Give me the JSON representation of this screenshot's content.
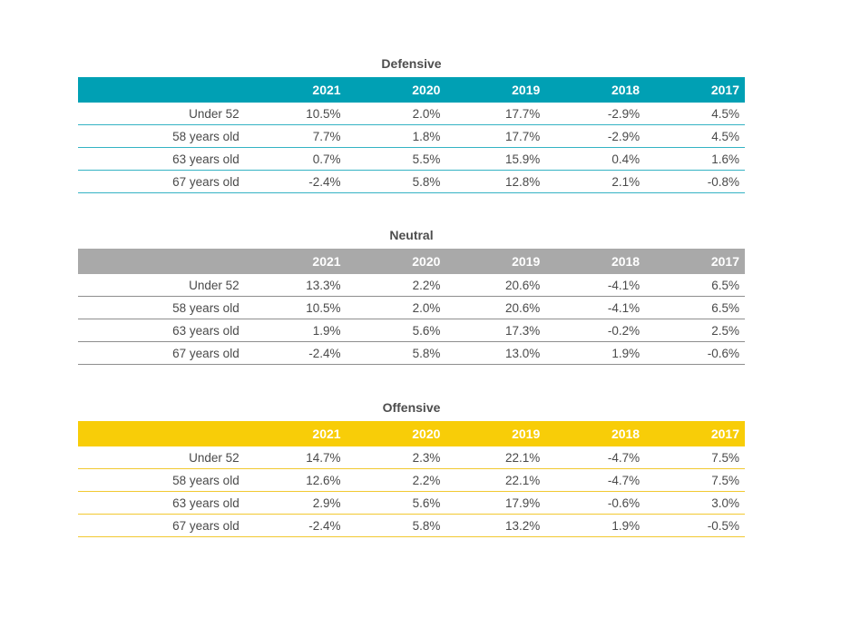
{
  "years": [
    "2021",
    "2020",
    "2019",
    "2018",
    "2017"
  ],
  "tables": [
    {
      "title": "Defensive",
      "theme": "teal",
      "header_color": "#00a0b4",
      "rows": [
        {
          "label": "Under 52",
          "values": [
            "10.5%",
            "2.0%",
            "17.7%",
            "-2.9%",
            "4.5%"
          ]
        },
        {
          "label": "58 years old",
          "values": [
            "7.7%",
            "1.8%",
            "17.7%",
            "-2.9%",
            "4.5%"
          ]
        },
        {
          "label": "63 years old",
          "values": [
            "0.7%",
            "5.5%",
            "15.9%",
            "0.4%",
            "1.6%"
          ]
        },
        {
          "label": "67 years old",
          "values": [
            "-2.4%",
            "5.8%",
            "12.8%",
            "2.1%",
            "-0.8%"
          ]
        }
      ]
    },
    {
      "title": "Neutral",
      "theme": "gray",
      "header_color": "#a9a9a9",
      "rows": [
        {
          "label": "Under 52",
          "values": [
            "13.3%",
            "2.2%",
            "20.6%",
            "-4.1%",
            "6.5%"
          ]
        },
        {
          "label": "58 years old",
          "values": [
            "10.5%",
            "2.0%",
            "20.6%",
            "-4.1%",
            "6.5%"
          ]
        },
        {
          "label": "63 years old",
          "values": [
            "1.9%",
            "5.6%",
            "17.3%",
            "-0.2%",
            "2.5%"
          ]
        },
        {
          "label": "67 years old",
          "values": [
            "-2.4%",
            "5.8%",
            "13.0%",
            "1.9%",
            "-0.6%"
          ]
        }
      ]
    },
    {
      "title": "Offensive",
      "theme": "yellow",
      "header_color": "#f8cd08",
      "rows": [
        {
          "label": "Under 52",
          "values": [
            "14.7%",
            "2.3%",
            "22.1%",
            "-4.7%",
            "7.5%"
          ]
        },
        {
          "label": "58 years old",
          "values": [
            "12.6%",
            "2.2%",
            "22.1%",
            "-4.7%",
            "7.5%"
          ]
        },
        {
          "label": "63 years old",
          "values": [
            "2.9%",
            "5.6%",
            "17.9%",
            "-0.6%",
            "3.0%"
          ]
        },
        {
          "label": "67 years old",
          "values": [
            "-2.4%",
            "5.8%",
            "13.2%",
            "1.9%",
            "-0.5%"
          ]
        }
      ]
    }
  ]
}
